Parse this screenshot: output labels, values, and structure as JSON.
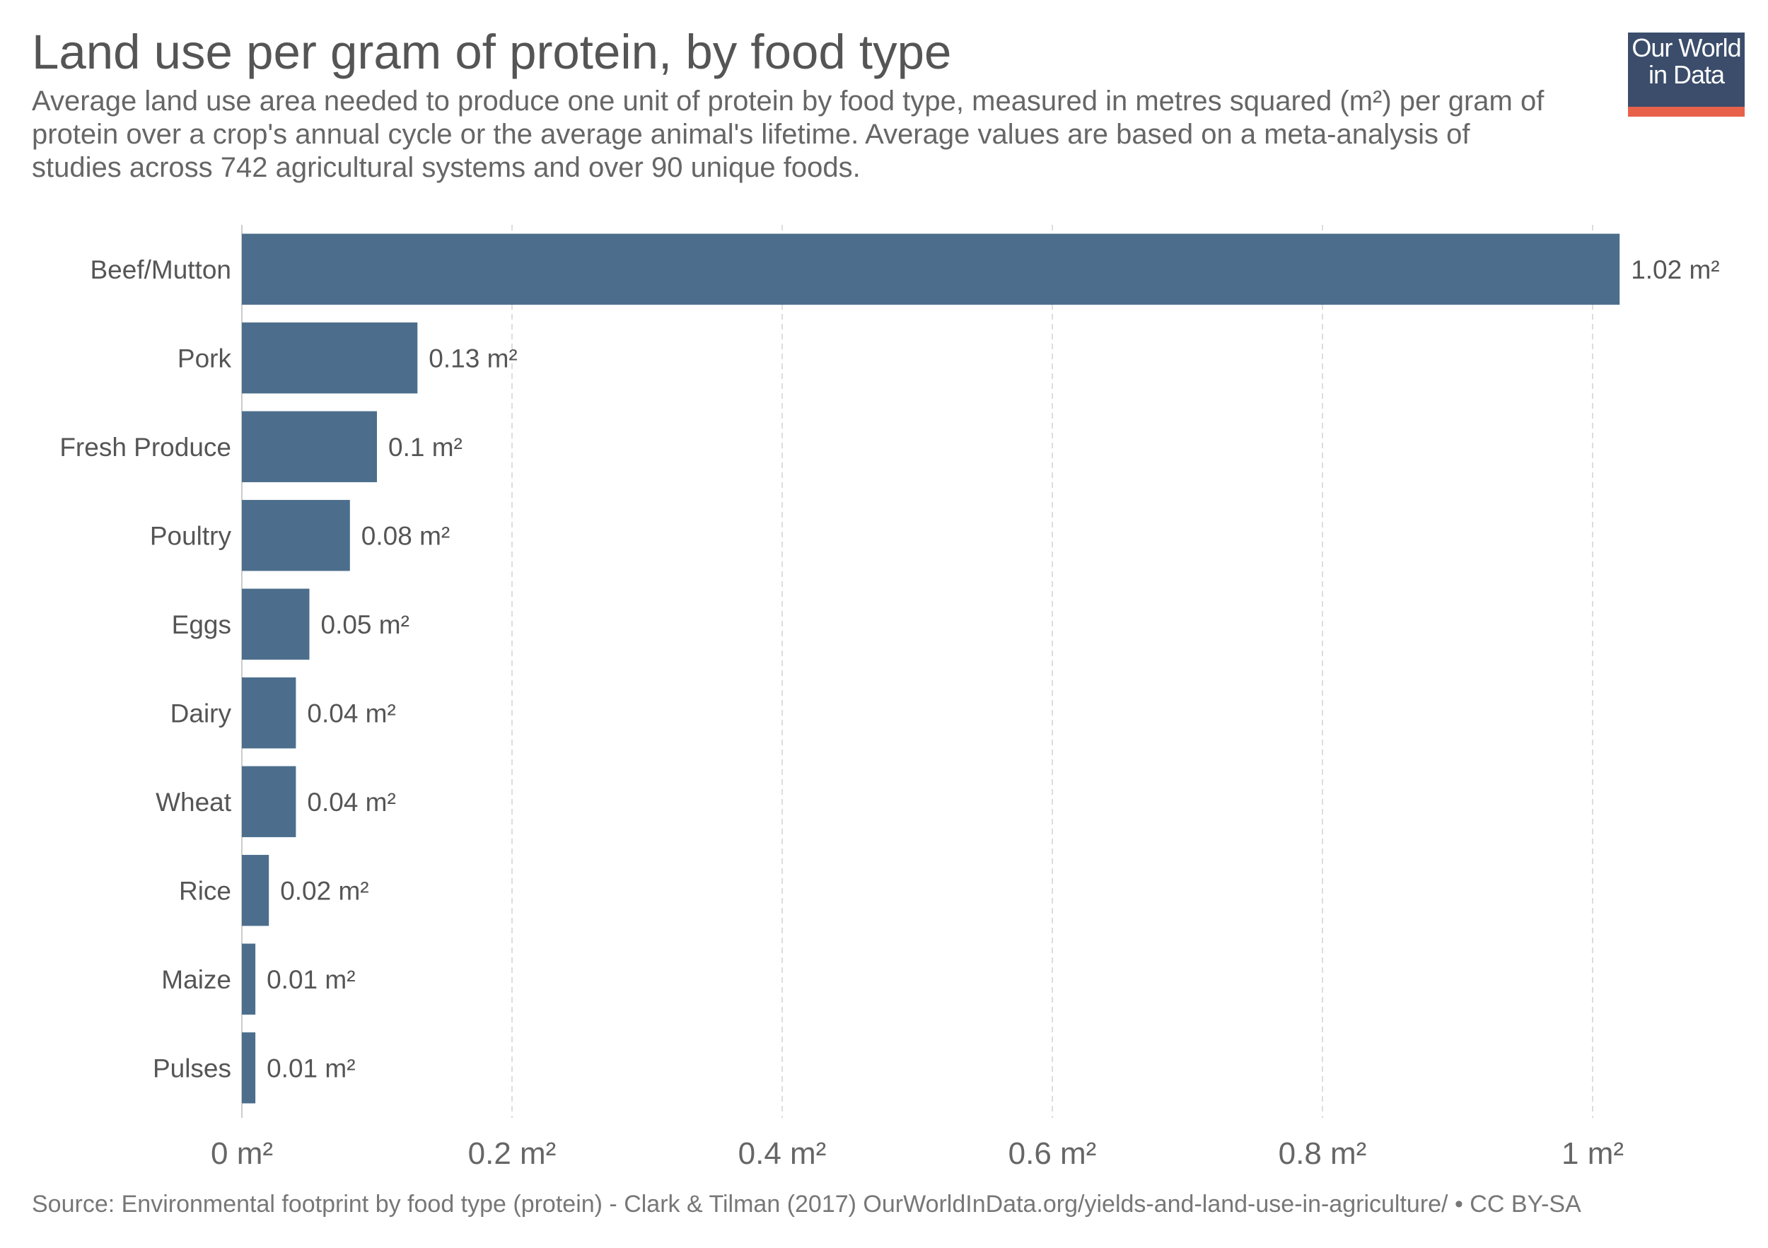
{
  "header": {
    "title": "Land use per gram of protein, by food type",
    "subtitle": "Average land use area needed to produce one unit of protein by food type, measured in metres squared (m²) per gram of protein over a crop's annual cycle or the average animal's lifetime. Average values are based on a meta-analysis of studies across 742 agricultural systems and over 90 unique foods."
  },
  "logo": {
    "line1": "Our World",
    "line2": "in Data"
  },
  "footer": {
    "source": "Source: Environmental footprint by food type (protein) - Clark & Tilman (2017)  OurWorldInData.org/yields-and-land-use-in-agriculture/ • CC BY-SA"
  },
  "colors": {
    "bar": "#4c6e8c",
    "logo_bg": "#3b4d6b",
    "logo_accent": "#e8624a",
    "grid": "#dddddd"
  },
  "chart_data": {
    "type": "bar",
    "orientation": "horizontal",
    "categories": [
      "Beef/Mutton",
      "Pork",
      "Fresh Produce",
      "Poultry",
      "Eggs",
      "Dairy",
      "Wheat",
      "Rice",
      "Maize",
      "Pulses"
    ],
    "values": [
      1.02,
      0.13,
      0.1,
      0.08,
      0.05,
      0.04,
      0.04,
      0.02,
      0.01,
      0.01
    ],
    "value_labels": [
      "1.02 m²",
      "0.13 m²",
      "0.1 m²",
      "0.08 m²",
      "0.05 m²",
      "0.04 m²",
      "0.04 m²",
      "0.02 m²",
      "0.01 m²",
      "0.01 m²"
    ],
    "xticks": [
      0,
      0.2,
      0.4,
      0.6,
      0.8,
      1
    ],
    "xtick_labels": [
      "0 m²",
      "0.2 m²",
      "0.4 m²",
      "0.6 m²",
      "0.8 m²",
      "1 m²"
    ],
    "xlim": [
      0,
      1.02
    ],
    "grid": true
  }
}
